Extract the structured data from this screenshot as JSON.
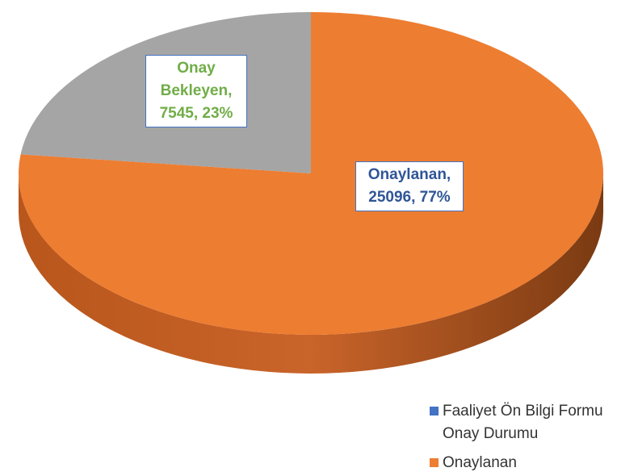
{
  "chart_data": {
    "type": "pie",
    "categories": [
      "Onay Bekleyen",
      "Onaylanan"
    ],
    "values": [
      7545,
      25096
    ],
    "value_labels": [
      "Onay Bekleyen, 7545, 23%",
      "Onaylanan, 25096, 77%"
    ],
    "colors": [
      "#a5a5a5",
      "#ed7d31"
    ],
    "label_colors": [
      "#70ad47",
      "#2f5597"
    ],
    "legend": [
      {
        "name": "Faaliyet Ön Bilgi Formu Onay Durumu",
        "color": "#4472c4"
      },
      {
        "name": "Onaylanan",
        "color": "#ed7d31"
      }
    ]
  }
}
